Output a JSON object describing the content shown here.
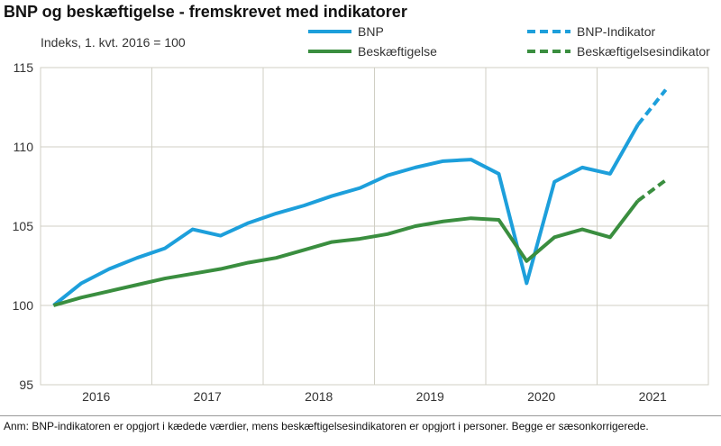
{
  "chart_data": {
    "type": "line",
    "title": "BNP og beskæftigelse - fremskrevet med indikatorer",
    "ylabel": "Indeks, 1. kvt. 2016  = 100",
    "ylim": [
      95,
      115
    ],
    "yticks": [
      95,
      100,
      105,
      110,
      115
    ],
    "year_labels": [
      "2016",
      "2017",
      "2018",
      "2019",
      "2020",
      "2021"
    ],
    "x": [
      "2016K1",
      "2016K2",
      "2016K3",
      "2016K4",
      "2017K1",
      "2017K2",
      "2017K3",
      "2017K4",
      "2018K1",
      "2018K2",
      "2018K3",
      "2018K4",
      "2019K1",
      "2019K2",
      "2019K3",
      "2019K4",
      "2020K1",
      "2020K2",
      "2020K3",
      "2020K4",
      "2021K1",
      "2021K2",
      "2021K3"
    ],
    "grid": true,
    "legend_placement": "top",
    "series": [
      {
        "name": "BNP",
        "color": "#1d9fdb",
        "style": "solid",
        "values": [
          100,
          101.4,
          102.3,
          103.0,
          103.6,
          104.8,
          104.4,
          105.2,
          105.8,
          106.3,
          106.9,
          107.4,
          108.2,
          108.7,
          109.1,
          109.2,
          108.3,
          101.4,
          107.8,
          108.7,
          108.3,
          111.4,
          null
        ]
      },
      {
        "name": "Beskæftigelse",
        "color": "#3a8e3f",
        "style": "solid",
        "values": [
          100,
          100.5,
          100.9,
          101.3,
          101.7,
          102.0,
          102.3,
          102.7,
          103.0,
          103.5,
          104.0,
          104.2,
          104.5,
          105.0,
          105.3,
          105.5,
          105.4,
          102.8,
          104.3,
          104.8,
          104.3,
          106.6,
          null
        ]
      },
      {
        "name": "BNP-Indikator",
        "color": "#1d9fdb",
        "style": "dashed",
        "values": [
          null,
          null,
          null,
          null,
          null,
          null,
          null,
          null,
          null,
          null,
          null,
          null,
          null,
          null,
          null,
          null,
          null,
          null,
          null,
          null,
          null,
          111.4,
          113.6
        ]
      },
      {
        "name": "Beskæftigelsesindikator",
        "color": "#3a8e3f",
        "style": "dashed",
        "values": [
          null,
          null,
          null,
          null,
          null,
          null,
          null,
          null,
          null,
          null,
          null,
          null,
          null,
          null,
          null,
          null,
          null,
          null,
          null,
          null,
          null,
          106.6,
          107.9
        ]
      }
    ]
  },
  "note": "Anm: BNP-indikatoren er opgjort i kædede værdier, mens beskæftigelsesindikatoren er opgjort i personer. Begge er sæsonkorrigerede."
}
